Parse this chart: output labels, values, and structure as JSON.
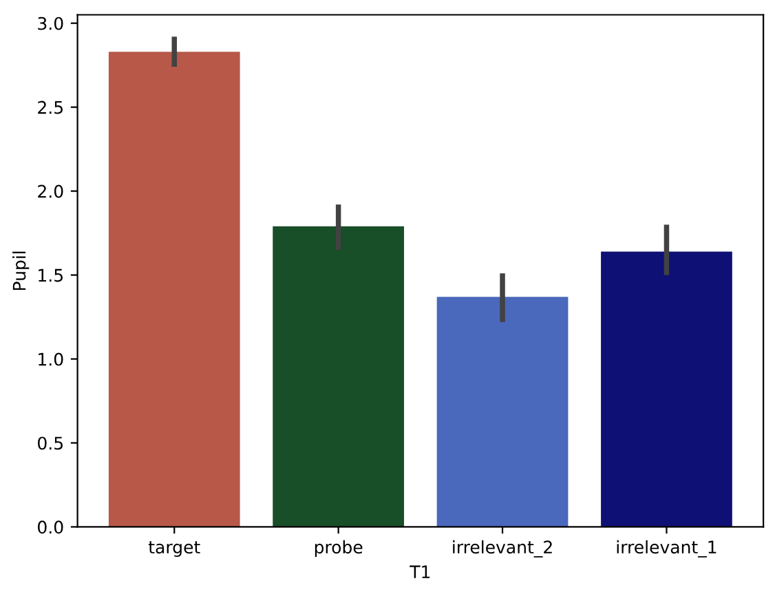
{
  "chart_data": {
    "type": "bar",
    "xlabel": "T1",
    "ylabel": "Pupil",
    "categories": [
      "target",
      "probe",
      "irrelevant_2",
      "irrelevant_1"
    ],
    "values": [
      2.83,
      1.79,
      1.37,
      1.64
    ],
    "colors": [
      "#b85848",
      "#184e28",
      "#4a68bc",
      "#0f1075"
    ],
    "errors": [
      [
        2.74,
        2.92
      ],
      [
        1.65,
        1.92
      ],
      [
        1.22,
        1.51
      ],
      [
        1.5,
        1.8
      ]
    ],
    "ylim": [
      0,
      3.05
    ],
    "yticks": [
      {
        "value": 0,
        "label": "0.0"
      },
      {
        "value": 0.5,
        "label": "0.5"
      },
      {
        "value": 1,
        "label": "1.0"
      },
      {
        "value": 1.5,
        "label": "1.5"
      },
      {
        "value": 2,
        "label": "2.0"
      },
      {
        "value": 2.5,
        "label": "2.5"
      },
      {
        "value": 3,
        "label": "3.0"
      }
    ],
    "grid": false
  }
}
